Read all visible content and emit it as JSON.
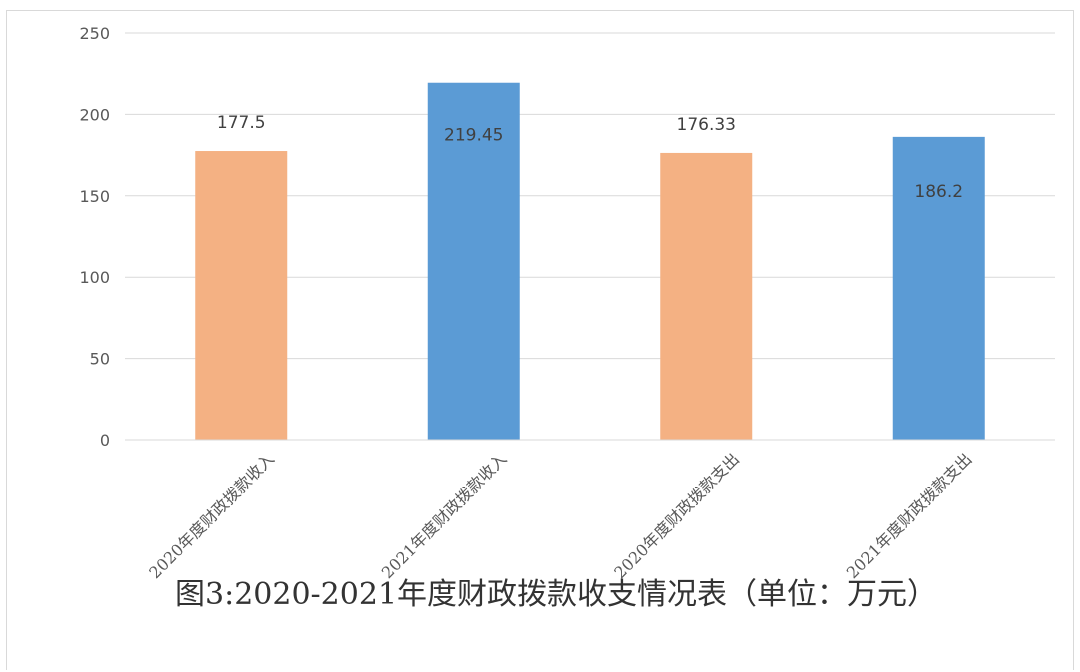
{
  "chart_data": {
    "type": "bar",
    "title": "",
    "xlabel": "",
    "ylabel": "",
    "categories": [
      "2020年度财政拨款收入",
      "2021年度财政拨款收入",
      "2020年度财政拨款支出",
      "2021年度财政拨款支出"
    ],
    "values": [
      177.5,
      219.45,
      176.33,
      186.2
    ],
    "data_labels": [
      "177.5",
      "219.45",
      "176.33",
      "186.2"
    ],
    "bar_colors": [
      "#F4B183",
      "#5B9BD5",
      "#F4B183",
      "#5B9BD5"
    ],
    "ylim": [
      0,
      250
    ],
    "yticks": [
      "0",
      "50",
      "100",
      "150",
      "200",
      "250"
    ],
    "grid": true,
    "legend": "none",
    "gridline_color": "#d9d9d9"
  },
  "caption": "图3:2020-2021年度财政拨款收支情况表（单位：万元）"
}
